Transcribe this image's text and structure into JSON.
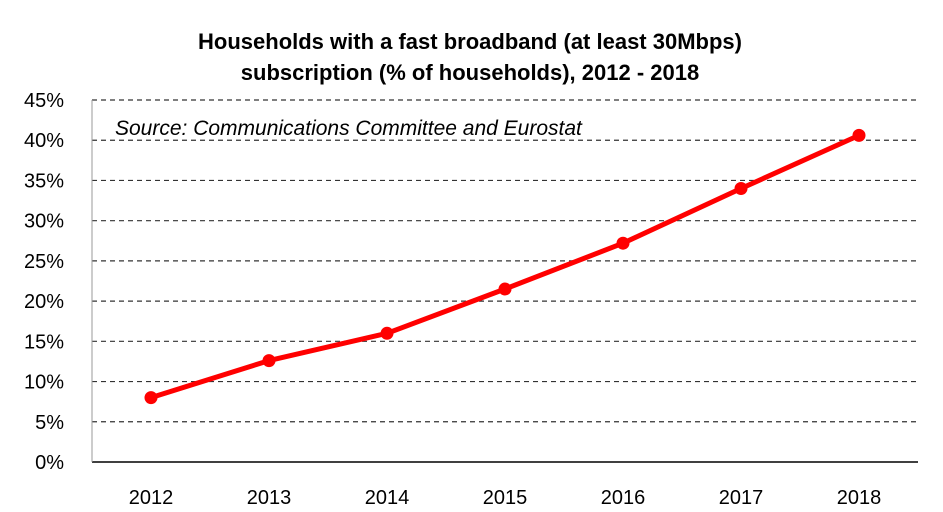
{
  "chart_data": {
    "type": "line",
    "title_lines": [
      "Households with a fast broadband (at least 30Mbps)",
      "subscription (% of households), 2012 - 2018"
    ],
    "annotation": "Source: Communications Committee and Eurostat",
    "categories": [
      "2012",
      "2013",
      "2014",
      "2015",
      "2016",
      "2017",
      "2018"
    ],
    "series": [
      {
        "values": [
          8,
          12.6,
          16,
          21.5,
          27.2,
          34,
          40.6
        ],
        "color": "#ff0000"
      }
    ],
    "ylim": [
      0,
      45
    ],
    "yticks": [
      0,
      5,
      10,
      15,
      20,
      25,
      30,
      35,
      40,
      45
    ],
    "ytick_labels": [
      "0%",
      "5%",
      "10%",
      "15%",
      "20%",
      "25%",
      "30%",
      "35%",
      "40%",
      "45%"
    ],
    "grid": true,
    "grid_color": "#333333",
    "legend": "none"
  }
}
